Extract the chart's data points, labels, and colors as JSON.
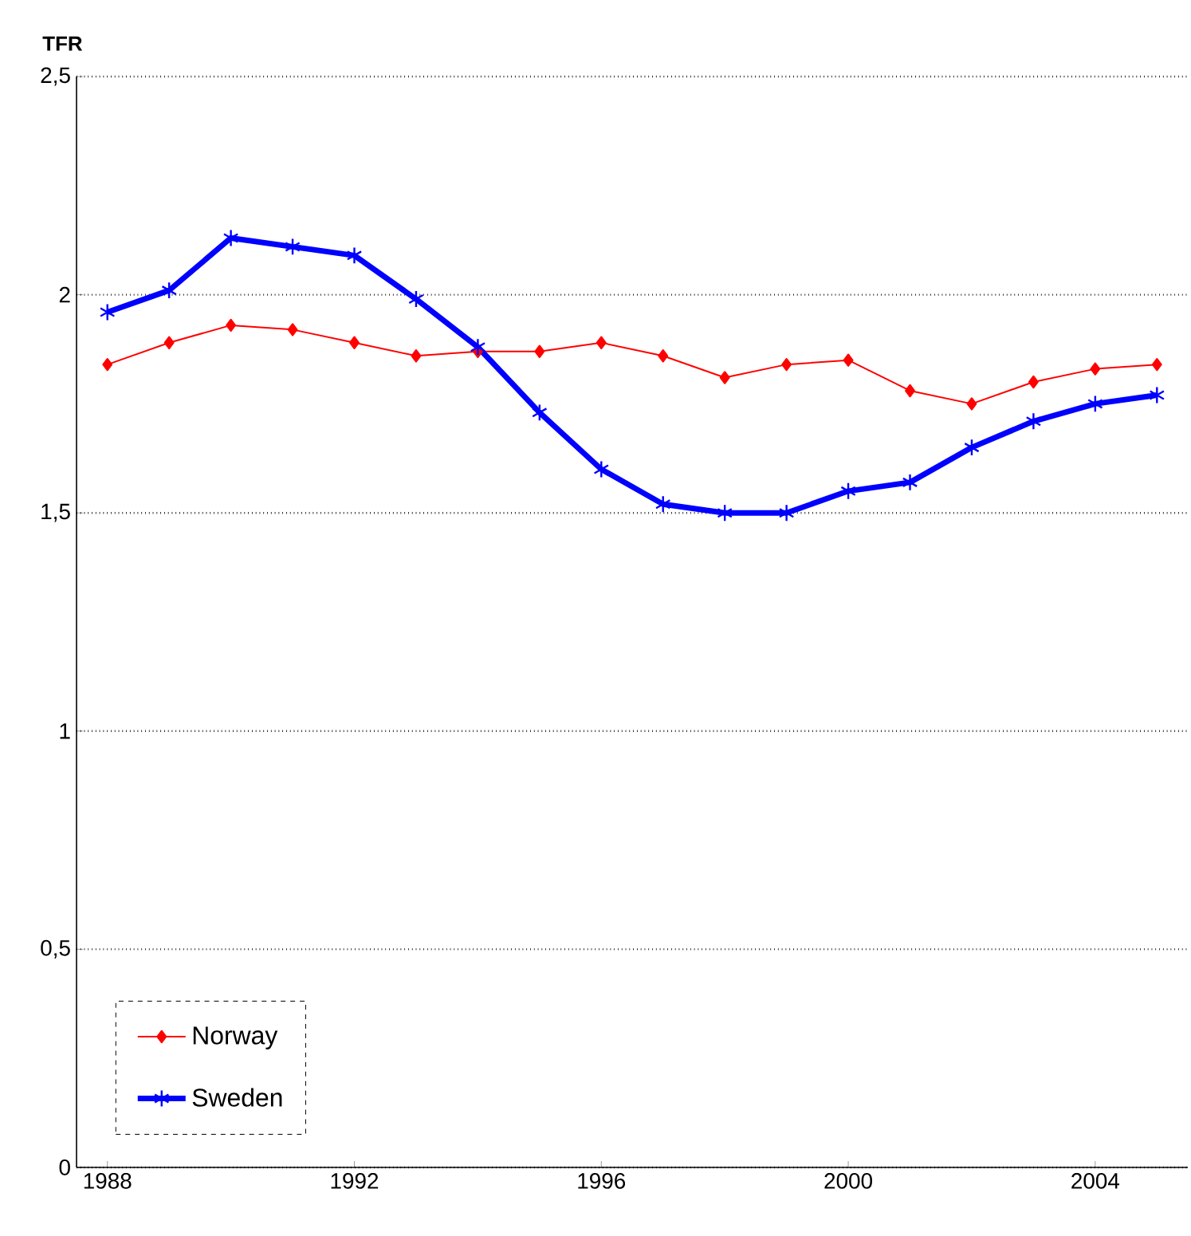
{
  "chart_data": {
    "type": "line",
    "ylabel": "TFR",
    "categories": [
      "1988",
      null,
      null,
      null,
      "1992",
      null,
      null,
      null,
      "1996",
      null,
      null,
      null,
      "2000",
      null,
      null,
      null,
      "2004",
      null
    ],
    "series": [
      {
        "name": "Norway",
        "color": "#ff0000",
        "marker": "diamond",
        "values": [
          1.84,
          1.89,
          1.93,
          1.92,
          1.89,
          1.86,
          1.87,
          1.87,
          1.89,
          1.86,
          1.81,
          1.84,
          1.85,
          1.78,
          1.75,
          1.8,
          1.83,
          1.84
        ]
      },
      {
        "name": "Sweden",
        "color": "#0000ff",
        "marker": "cross",
        "values": [
          1.96,
          2.01,
          2.13,
          2.11,
          2.09,
          1.99,
          1.88,
          1.73,
          1.6,
          1.52,
          1.5,
          1.5,
          1.55,
          1.57,
          1.65,
          1.71,
          1.75,
          1.77
        ]
      }
    ],
    "ylim": [
      0,
      2.5
    ],
    "yticks": [
      0,
      {
        "value": 0.5,
        "label": "0,5"
      },
      1,
      {
        "value": 1.5,
        "label": "1,5"
      },
      2,
      {
        "value": 2.5,
        "label": "2,5"
      }
    ],
    "grid": "y",
    "legend": "bottom left",
    "line_style": "solid"
  }
}
